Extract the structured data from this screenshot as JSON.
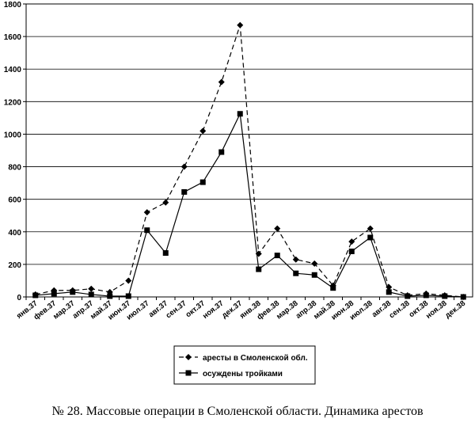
{
  "chart_data": {
    "type": "line",
    "categories": [
      "янв.37",
      "фев.37",
      "мар.37",
      "апр.37",
      "май.37",
      "июн.37",
      "июл.37",
      "авг.37",
      "сен.37",
      "окт.37",
      "ноя.37",
      "дек.37",
      "янв.38",
      "фев.38",
      "мар.38",
      "апр.38",
      "май.38",
      "июн.38",
      "июл.38",
      "авг.38",
      "сен.38",
      "окт.38",
      "ноя.38",
      "дек.38"
    ],
    "series": [
      {
        "name": "аресты в Смоленской обл.",
        "marker": "diamond",
        "dash": "dashed",
        "values": [
          15,
          40,
          40,
          50,
          30,
          100,
          520,
          580,
          800,
          1020,
          1320,
          1670,
          265,
          420,
          230,
          205,
          70,
          340,
          420,
          60,
          10,
          20,
          10,
          0
        ]
      },
      {
        "name": "осуждены тройками",
        "marker": "square",
        "dash": "solid",
        "values": [
          10,
          20,
          30,
          15,
          5,
          5,
          410,
          270,
          645,
          705,
          890,
          1125,
          170,
          255,
          145,
          135,
          55,
          280,
          365,
          30,
          5,
          10,
          5,
          0
        ]
      }
    ],
    "ylim": [
      0,
      1800
    ],
    "yticks": [
      0,
      200,
      400,
      600,
      800,
      1000,
      1200,
      1400,
      1600,
      1800
    ],
    "grid": "horizontal",
    "legend": "bottom-center",
    "colors": {
      "line": "#000000",
      "grid": "#000000",
      "background": "#ffffff"
    }
  },
  "caption": "№ 28. Массовые операции в Смоленской области. Динамика арестов"
}
